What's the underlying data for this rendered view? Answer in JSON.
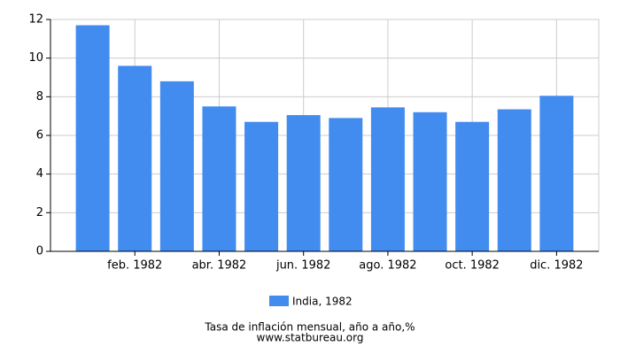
{
  "chart_data": {
    "type": "bar",
    "title": "Tasa de inflación mensual, año a año,%",
    "subtitle": "www.statbureau.org",
    "categories": [
      null,
      "feb. 1982",
      null,
      "abr. 1982",
      null,
      "jun. 1982",
      null,
      "ago. 1982",
      null,
      "oct. 1982",
      null,
      "dic. 1982"
    ],
    "series": [
      {
        "name": "India, 1982",
        "color": "#428bef",
        "values": [
          11.7,
          9.6,
          8.8,
          7.5,
          6.7,
          7.05,
          6.9,
          7.45,
          7.2,
          6.7,
          7.35,
          8.05
        ]
      }
    ],
    "ylim": [
      0,
      12
    ],
    "yticks": [
      0,
      2,
      4,
      6,
      8,
      10,
      12
    ],
    "grid": true,
    "legend": "bottom"
  }
}
